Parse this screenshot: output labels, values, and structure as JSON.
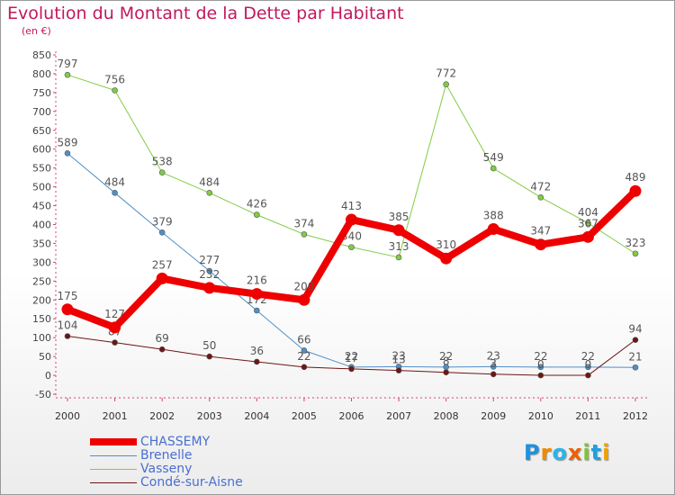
{
  "chart_data": {
    "type": "line",
    "title": "Evolution du Montant de la Dette par Habitant",
    "subtitle": "(en €)",
    "x": [
      "2000",
      "2001",
      "2002",
      "2003",
      "2004",
      "2005",
      "2006",
      "2007",
      "2008",
      "2009",
      "2010",
      "2011",
      "2012"
    ],
    "ylim": [
      -50,
      850
    ],
    "yticks": [
      -50,
      0,
      50,
      100,
      150,
      200,
      250,
      300,
      350,
      400,
      450,
      500,
      550,
      600,
      650,
      700,
      750,
      800,
      850
    ],
    "grid": false,
    "legend_position": "bottom-left",
    "series": [
      {
        "name": "CHASSEMY",
        "color": "#ee0000",
        "stroke_width": 8,
        "values": [
          175,
          127,
          257,
          232,
          216,
          200,
          413,
          385,
          310,
          388,
          347,
          367,
          489
        ],
        "labels": [
          "175",
          "127",
          "257",
          "232",
          "216",
          "200",
          "413",
          "385",
          "310",
          "388",
          "347",
          "367",
          "489"
        ]
      },
      {
        "name": "Brenelle",
        "color": "#4f90c8",
        "stroke_width": 1,
        "values": [
          589,
          484,
          379,
          277,
          172,
          66,
          22,
          23,
          22,
          23,
          22,
          22,
          21
        ],
        "labels": [
          "589",
          "484",
          "379",
          "277",
          "172",
          "66",
          "22",
          "23",
          "22",
          "23",
          "22",
          "22",
          "21"
        ]
      },
      {
        "name": "Vasseny",
        "color": "#82cc44",
        "stroke_width": 1,
        "values": [
          797,
          756,
          538,
          484,
          426,
          374,
          340,
          313,
          772,
          549,
          472,
          404,
          323
        ],
        "labels": [
          "797",
          "756",
          "538",
          "484",
          "426",
          "374",
          "340",
          "313",
          "772",
          "549",
          "472",
          "404",
          "323"
        ]
      },
      {
        "name": "Condé-sur-Aisne",
        "color": "#6d1515",
        "stroke_width": 1,
        "values": [
          104,
          87,
          69,
          50,
          36,
          22,
          17,
          13,
          8,
          3,
          0,
          0,
          94
        ],
        "labels": [
          "104",
          "87",
          "69",
          "50",
          "36",
          "22",
          "17",
          "13",
          "8",
          "3",
          "0",
          "0",
          "94"
        ]
      }
    ]
  },
  "logo": {
    "text": "Proxiti",
    "letters": [
      {
        "ch": "P",
        "color": "#1e90e0"
      },
      {
        "ch": "r",
        "color": "#f08a00"
      },
      {
        "ch": "o",
        "color": "#2bb3e8"
      },
      {
        "ch": "x",
        "color": "#f06000"
      },
      {
        "ch": "i",
        "color": "#7cc53b"
      },
      {
        "ch": "t",
        "color": "#20a0e0"
      },
      {
        "ch": "i",
        "color": "#f0a000"
      }
    ]
  }
}
